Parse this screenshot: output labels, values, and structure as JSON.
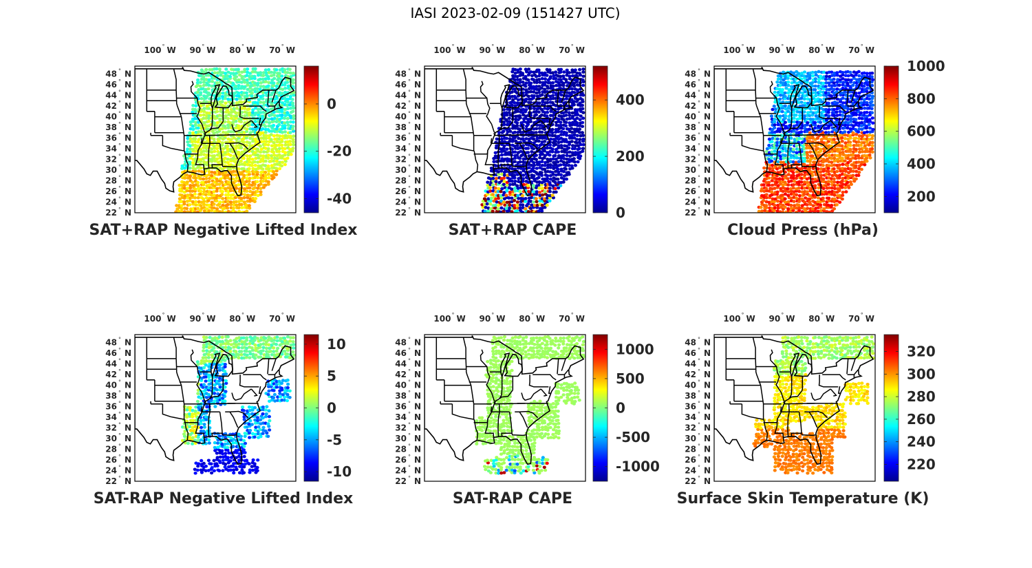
{
  "title": "IASI 2023-02-09 (151427 UTC)",
  "lat_labels": [
    "48° N",
    "46° N",
    "44° N",
    "42° N",
    "40° N",
    "38° N",
    "36° N",
    "34° N",
    "32° N",
    "30° N",
    "28° N",
    "26° N",
    "24° N",
    "22° N"
  ],
  "lon_labels": [
    "100° W",
    "90° W",
    "80° W",
    "70° W"
  ],
  "colors": {
    "jet": [
      "#00008f",
      "#0000ff",
      "#0080ff",
      "#00ffff",
      "#80ff80",
      "#ffff00",
      "#ff8000",
      "#ff0000",
      "#800000"
    ],
    "border": "#000000",
    "text": "#262626"
  },
  "panels": [
    {
      "name": "sat-rap-plus-lifted-index",
      "label": "SAT+RAP Negative Lifted Index",
      "colorbar": {
        "min": -46,
        "max": 16,
        "ticks": [
          0,
          -20,
          -40
        ],
        "tick_labels": [
          "0",
          "-20",
          "-40"
        ]
      },
      "field": {
        "type": "li_plus",
        "swath": [
          [
            -91,
            49
          ],
          [
            -67,
            49
          ],
          [
            -67,
            33
          ],
          [
            -79,
            22
          ],
          [
            -97,
            22
          ]
        ]
      }
    },
    {
      "name": "sat-rap-plus-cape",
      "label": "SAT+RAP CAPE",
      "colorbar": {
        "min": 0,
        "max": 520,
        "ticks": [
          400,
          200,
          0
        ],
        "tick_labels": [
          "400",
          "200",
          "0"
        ]
      },
      "field": {
        "type": "cape_plus",
        "swath": [
          [
            -85,
            49
          ],
          [
            -67,
            49
          ],
          [
            -67,
            33
          ],
          [
            -77,
            22
          ],
          [
            -93,
            22
          ]
        ]
      }
    },
    {
      "name": "cloud-pressure",
      "label": "Cloud Press (hPa)",
      "colorbar": {
        "min": 100,
        "max": 1000,
        "ticks": [
          1000,
          800,
          600,
          400,
          200
        ],
        "tick_labels": [
          "1000",
          "800",
          "600",
          "400",
          "200"
        ]
      },
      "field": {
        "type": "cloud",
        "swath": [
          [
            -91,
            48.5
          ],
          [
            -67,
            48.5
          ],
          [
            -67,
            33
          ],
          [
            -77,
            22
          ],
          [
            -96,
            22
          ]
        ]
      }
    },
    {
      "name": "sat-rap-minus-lifted-index",
      "label": "SAT-RAP Negative Lifted Index",
      "colorbar": {
        "min": -11.5,
        "max": 11.5,
        "ticks": [
          10,
          5,
          0,
          -5,
          -10
        ],
        "tick_labels": [
          "10",
          "5",
          "0",
          "-5",
          "-10"
        ]
      },
      "field": {
        "type": "li_minus"
      }
    },
    {
      "name": "sat-rap-minus-cape",
      "label": "SAT-RAP CAPE",
      "colorbar": {
        "min": -1250,
        "max": 1250,
        "ticks": [
          1000,
          500,
          0,
          -500,
          -1000
        ],
        "tick_labels": [
          "1000",
          "500",
          "0",
          "-500",
          "-1000"
        ]
      },
      "field": {
        "type": "cape_minus"
      }
    },
    {
      "name": "surface-skin-temperature",
      "label": "Surface Skin Temperature (K)",
      "colorbar": {
        "min": 205,
        "max": 335,
        "ticks": [
          320,
          300,
          280,
          260,
          240,
          220
        ],
        "tick_labels": [
          "320",
          "300",
          "280",
          "260",
          "240",
          "220"
        ]
      },
      "field": {
        "type": "skin"
      }
    }
  ]
}
